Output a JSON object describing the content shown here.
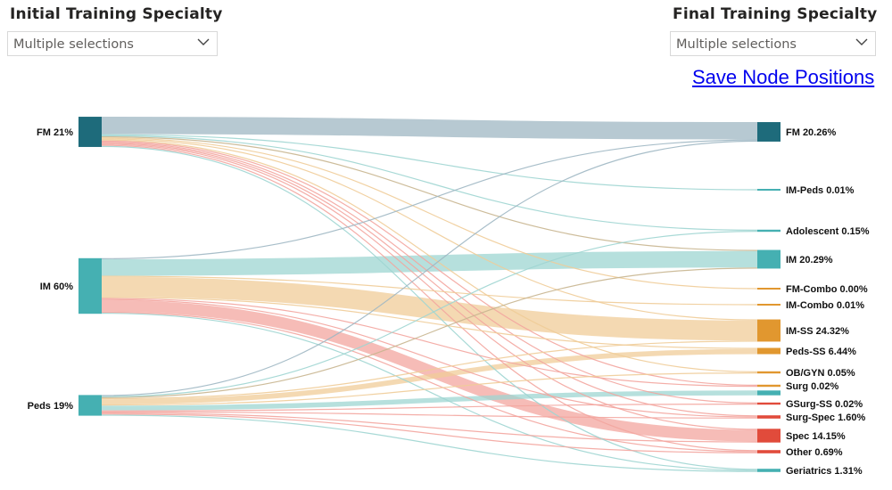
{
  "filters": {
    "initial": {
      "title": "Initial Training Specialty",
      "value": "Multiple selections"
    },
    "final": {
      "title": "Final Training Specialty",
      "value": "Multiple selections"
    }
  },
  "actions": {
    "save_label": "Save Node Positions"
  },
  "colors": {
    "fm": "#1e6b7b",
    "im": "#45b0b2",
    "peds": "#45b0b2",
    "orange": "#e1972f",
    "red": "#e14b3b",
    "ribbon_blue": "#9fb7c3",
    "ribbon_teal": "#9ed5d2",
    "ribbon_orange": "#f0cc98",
    "ribbon_red": "#f3a59f"
  },
  "chart_data": {
    "type": "sankey",
    "sources": [
      {
        "name": "FM",
        "label": "FM 21%",
        "share": 21,
        "color": "#1e6b7b"
      },
      {
        "name": "IM",
        "label": "IM 60%",
        "share": 60,
        "color": "#45b0b2"
      },
      {
        "name": "Peds",
        "label": "Peds 19%",
        "share": 19,
        "color": "#45b0b2"
      }
    ],
    "targets": [
      {
        "name": "FM",
        "label": "FM 20.26%",
        "share": 20.26,
        "color": "#1e6b7b"
      },
      {
        "name": "IM-Peds",
        "label": "IM-Peds 0.01%",
        "share": 0.01,
        "color": "#45b0b2"
      },
      {
        "name": "Adolescent",
        "label": "Adolescent 0.15%",
        "share": 0.15,
        "color": "#45b0b2"
      },
      {
        "name": "IM",
        "label": "IM 20.29%",
        "share": 20.29,
        "color": "#45b0b2"
      },
      {
        "name": "FM-Combo",
        "label": "FM-Combo 0.00%",
        "share": 0.0,
        "color": "#e1972f"
      },
      {
        "name": "IM-Combo",
        "label": "IM-Combo 0.01%",
        "share": 0.01,
        "color": "#e1972f"
      },
      {
        "name": "IM-SS",
        "label": "IM-SS 24.32%",
        "share": 24.32,
        "color": "#e1972f"
      },
      {
        "name": "Peds-SS",
        "label": "Peds-SS 6.44%",
        "share": 6.44,
        "color": "#e1972f"
      },
      {
        "name": "OB/GYN",
        "label": "OB/GYN 0.05%",
        "share": 0.05,
        "color": "#e1972f"
      },
      {
        "name": "Surg",
        "label": "Surg 0.02%",
        "share": 0.02,
        "color": "#e1972f"
      },
      {
        "name": "Peds",
        "label": "",
        "share": 5.5,
        "color": "#45b0b2"
      },
      {
        "name": "GSurg-SS",
        "label": "GSurg-SS 0.02%",
        "share": 0.02,
        "color": "#e14b3b"
      },
      {
        "name": "Surg-Spec",
        "label": "Surg-Spec 1.60%",
        "share": 1.6,
        "color": "#e14b3b"
      },
      {
        "name": "Spec",
        "label": "Spec 14.15%",
        "share": 14.15,
        "color": "#e14b3b"
      },
      {
        "name": "Other",
        "label": "Other 0.69%",
        "share": 0.69,
        "color": "#e14b3b"
      },
      {
        "name": "Geriatrics",
        "label": "Geriatrics 1.31%",
        "share": 1.31,
        "color": "#45b0b2"
      }
    ],
    "flows": [
      {
        "source": "FM",
        "target": "FM",
        "value": 19.5,
        "color": "#9fb7c3"
      },
      {
        "source": "FM",
        "target": "IM-Peds",
        "value": 0.2,
        "color": "#9ed5d2"
      },
      {
        "source": "FM",
        "target": "Adolescent",
        "value": 0.2,
        "color": "#9ed5d2"
      },
      {
        "source": "FM",
        "target": "IM",
        "value": 0.2,
        "color": "#c8b58f"
      },
      {
        "source": "FM",
        "target": "FM-Combo",
        "value": 0.2,
        "color": "#f0cc98"
      },
      {
        "source": "FM",
        "target": "IM-SS",
        "value": 0.2,
        "color": "#f0cc98"
      },
      {
        "source": "FM",
        "target": "OB/GYN",
        "value": 0.2,
        "color": "#f0cc98"
      },
      {
        "source": "FM",
        "target": "Surg",
        "value": 0.2,
        "color": "#f3a59f"
      },
      {
        "source": "FM",
        "target": "GSurg-SS",
        "value": 0.2,
        "color": "#f3a59f"
      },
      {
        "source": "FM",
        "target": "Surg-Spec",
        "value": 0.2,
        "color": "#f3a59f"
      },
      {
        "source": "FM",
        "target": "Spec",
        "value": 0.2,
        "color": "#f3a59f"
      },
      {
        "source": "FM",
        "target": "Other",
        "value": 0.2,
        "color": "#f3a59f"
      },
      {
        "source": "FM",
        "target": "Geriatrics",
        "value": 0.2,
        "color": "#9ed5d2"
      },
      {
        "source": "IM",
        "target": "FM",
        "value": 0.2,
        "color": "#9fb7c3"
      },
      {
        "source": "IM",
        "target": "IM",
        "value": 18.5,
        "color": "#9ed5d2"
      },
      {
        "source": "IM",
        "target": "IM-Combo",
        "value": 0.2,
        "color": "#f0cc98"
      },
      {
        "source": "IM",
        "target": "IM-SS",
        "value": 22.5,
        "color": "#f0cc98"
      },
      {
        "source": "IM",
        "target": "Peds-SS",
        "value": 0.2,
        "color": "#f0cc98"
      },
      {
        "source": "IM",
        "target": "Surg",
        "value": 0.2,
        "color": "#f3a59f"
      },
      {
        "source": "IM",
        "target": "Surg-Spec",
        "value": 0.5,
        "color": "#f3a59f"
      },
      {
        "source": "IM",
        "target": "Spec",
        "value": 13.0,
        "color": "#f3a59f"
      },
      {
        "source": "IM",
        "target": "Other",
        "value": 0.3,
        "color": "#f3a59f"
      },
      {
        "source": "IM",
        "target": "Geriatrics",
        "value": 0.6,
        "color": "#9ed5d2"
      },
      {
        "source": "Peds",
        "target": "FM",
        "value": 0.2,
        "color": "#9fb7c3"
      },
      {
        "source": "Peds",
        "target": "Adolescent",
        "value": 0.2,
        "color": "#9ed5d2"
      },
      {
        "source": "Peds",
        "target": "IM",
        "value": 0.2,
        "color": "#c8b58f"
      },
      {
        "source": "Peds",
        "target": "IM-SS",
        "value": 0.2,
        "color": "#f0cc98"
      },
      {
        "source": "Peds",
        "target": "Peds-SS",
        "value": 5.8,
        "color": "#f0cc98"
      },
      {
        "source": "Peds",
        "target": "OB/GYN",
        "value": 0.2,
        "color": "#f0cc98"
      },
      {
        "source": "Peds",
        "target": "Peds",
        "value": 5.4,
        "color": "#9ed5d2"
      },
      {
        "source": "Peds",
        "target": "GSurg-SS",
        "value": 0.2,
        "color": "#f3a59f"
      },
      {
        "source": "Peds",
        "target": "Surg-Spec",
        "value": 0.2,
        "color": "#f3a59f"
      },
      {
        "source": "Peds",
        "target": "Spec",
        "value": 0.4,
        "color": "#f3a59f"
      },
      {
        "source": "Peds",
        "target": "Other",
        "value": 0.2,
        "color": "#f3a59f"
      },
      {
        "source": "Peds",
        "target": "Geriatrics",
        "value": 0.2,
        "color": "#9ed5d2"
      }
    ]
  }
}
